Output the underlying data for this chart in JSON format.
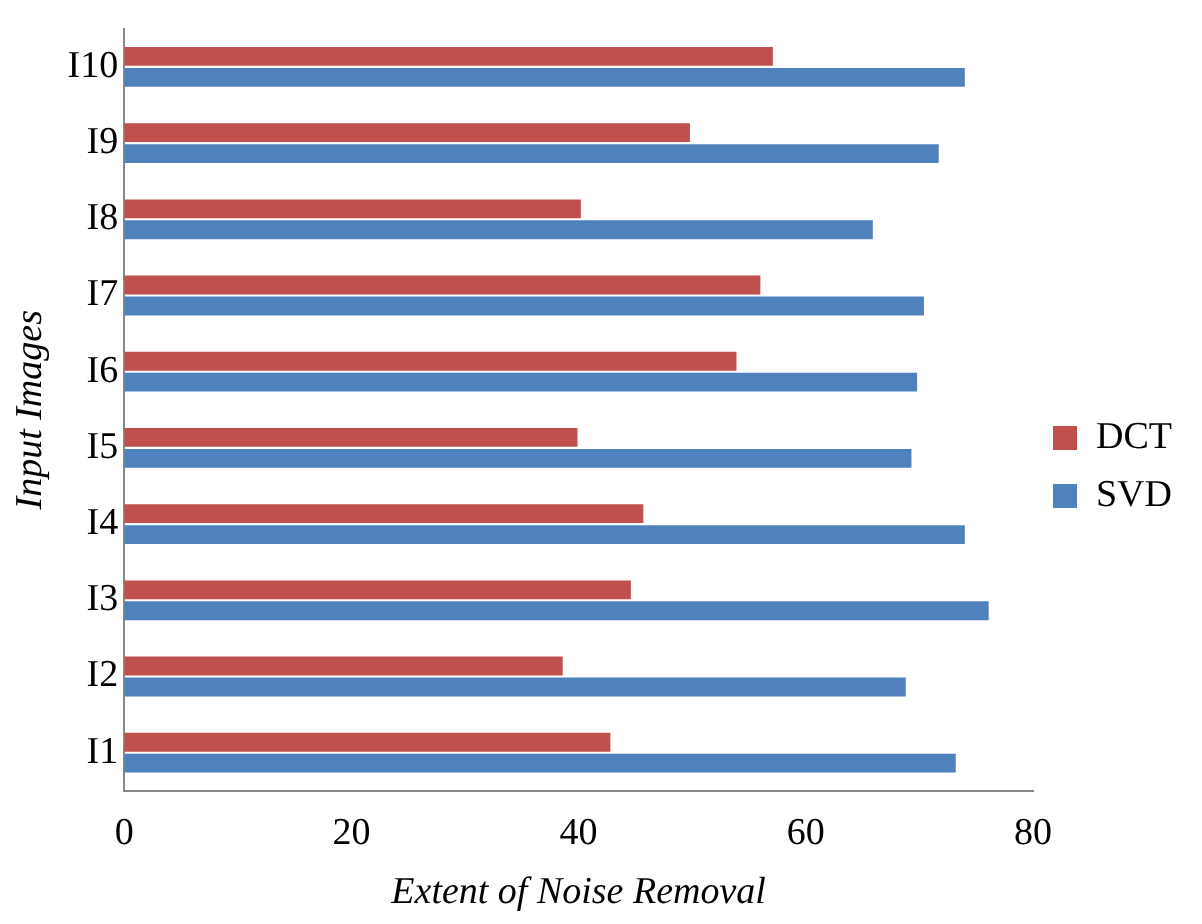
{
  "chart_data": {
    "type": "bar",
    "orientation": "horizontal",
    "xlabel": "Extent of Noise Removal",
    "ylabel": "Input Images",
    "categories": [
      "I10",
      "I9",
      "I8",
      "I7",
      "I6",
      "I5",
      "I4",
      "I3",
      "I2",
      "I1"
    ],
    "series": [
      {
        "name": "DCT",
        "color": "#c0504d",
        "values": [
          57.1,
          49.8,
          40.2,
          56.0,
          53.9,
          39.9,
          45.7,
          44.6,
          38.6,
          42.8
        ]
      },
      {
        "name": "SVD",
        "color": "#4f81bd",
        "values": [
          74.0,
          71.7,
          65.9,
          70.4,
          69.8,
          69.3,
          74.0,
          76.1,
          68.8,
          73.2
        ]
      }
    ],
    "xlim": [
      0,
      80
    ],
    "xticks": [
      0,
      20,
      40,
      60,
      80
    ],
    "grid": false,
    "legend": "right"
  }
}
